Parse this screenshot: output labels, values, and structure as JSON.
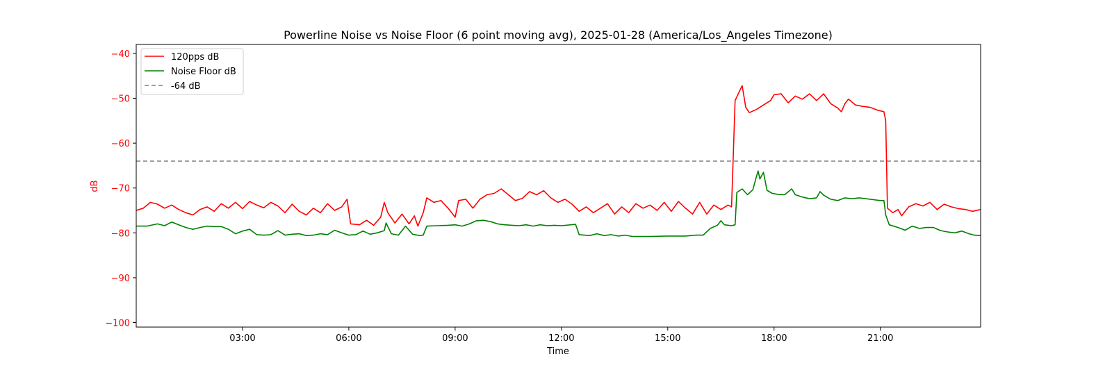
{
  "chart_data": {
    "type": "line",
    "title": "Powerline Noise vs Noise Floor (6 point moving avg), 2025-01-28 (America/Los_Angeles Timezone)",
    "xlabel": "Time",
    "ylabel": "dB",
    "x_unit": "hour of day",
    "xlim": [
      0,
      23.83
    ],
    "ylim": [
      -101,
      -38
    ],
    "x_ticks": [
      {
        "value": 3,
        "label": "03:00"
      },
      {
        "value": 6,
        "label": "06:00"
      },
      {
        "value": 9,
        "label": "09:00"
      },
      {
        "value": 12,
        "label": "12:00"
      },
      {
        "value": 15,
        "label": "15:00"
      },
      {
        "value": 18,
        "label": "18:00"
      },
      {
        "value": 21,
        "label": "21:00"
      }
    ],
    "y_ticks": [
      {
        "value": -40,
        "label": "−40"
      },
      {
        "value": -50,
        "label": "−50"
      },
      {
        "value": -60,
        "label": "−60"
      },
      {
        "value": -70,
        "label": "−70"
      },
      {
        "value": -80,
        "label": "−80"
      },
      {
        "value": -90,
        "label": "−90"
      },
      {
        "value": -100,
        "label": "−100"
      }
    ],
    "grid": false,
    "legend_position": "top-left",
    "ytick_color": "#ff0000",
    "series": [
      {
        "name": "120pps dB",
        "color": "#ff0000",
        "style": "solid",
        "points": [
          [
            0,
            -75
          ],
          [
            0.2,
            -74.5
          ],
          [
            0.4,
            -73.2
          ],
          [
            0.6,
            -73.6
          ],
          [
            0.8,
            -74.5
          ],
          [
            1.0,
            -73.8
          ],
          [
            1.2,
            -74.8
          ],
          [
            1.4,
            -75.5
          ],
          [
            1.6,
            -76
          ],
          [
            1.8,
            -74.8
          ],
          [
            2.0,
            -74.2
          ],
          [
            2.2,
            -75.2
          ],
          [
            2.4,
            -73.5
          ],
          [
            2.6,
            -74.5
          ],
          [
            2.8,
            -73.2
          ],
          [
            3.0,
            -74.6
          ],
          [
            3.2,
            -73.0
          ],
          [
            3.4,
            -73.8
          ],
          [
            3.6,
            -74.4
          ],
          [
            3.8,
            -73.2
          ],
          [
            4.0,
            -74
          ],
          [
            4.2,
            -75.5
          ],
          [
            4.4,
            -73.6
          ],
          [
            4.6,
            -75.2
          ],
          [
            4.8,
            -76
          ],
          [
            5.0,
            -74.5
          ],
          [
            5.2,
            -75.5
          ],
          [
            5.4,
            -73.5
          ],
          [
            5.6,
            -75
          ],
          [
            5.8,
            -74.2
          ],
          [
            5.95,
            -72.5
          ],
          [
            6.05,
            -78
          ],
          [
            6.3,
            -78.2
          ],
          [
            6.5,
            -77.2
          ],
          [
            6.7,
            -78.3
          ],
          [
            6.9,
            -76.5
          ],
          [
            7.0,
            -73.2
          ],
          [
            7.1,
            -75.5
          ],
          [
            7.3,
            -77.8
          ],
          [
            7.5,
            -75.8
          ],
          [
            7.7,
            -78
          ],
          [
            7.85,
            -76.2
          ],
          [
            7.95,
            -78.5
          ],
          [
            8.1,
            -75.5
          ],
          [
            8.2,
            -72.2
          ],
          [
            8.4,
            -73.2
          ],
          [
            8.6,
            -72.8
          ],
          [
            8.8,
            -74.5
          ],
          [
            9.0,
            -76.5
          ],
          [
            9.1,
            -72.8
          ],
          [
            9.3,
            -72.5
          ],
          [
            9.5,
            -74.5
          ],
          [
            9.7,
            -72.5
          ],
          [
            9.9,
            -71.5
          ],
          [
            10.1,
            -71.2
          ],
          [
            10.3,
            -70.2
          ],
          [
            10.5,
            -71.5
          ],
          [
            10.7,
            -72.8
          ],
          [
            10.9,
            -72.3
          ],
          [
            11.1,
            -70.8
          ],
          [
            11.3,
            -71.5
          ],
          [
            11.5,
            -70.6
          ],
          [
            11.7,
            -72.2
          ],
          [
            11.9,
            -73.2
          ],
          [
            12.1,
            -72.5
          ],
          [
            12.3,
            -73.6
          ],
          [
            12.5,
            -75.2
          ],
          [
            12.7,
            -74.2
          ],
          [
            12.9,
            -75.5
          ],
          [
            13.1,
            -74.5
          ],
          [
            13.3,
            -73.5
          ],
          [
            13.5,
            -75.8
          ],
          [
            13.7,
            -74.2
          ],
          [
            13.9,
            -75.5
          ],
          [
            14.1,
            -73.5
          ],
          [
            14.3,
            -74.5
          ],
          [
            14.5,
            -73.8
          ],
          [
            14.7,
            -75
          ],
          [
            14.9,
            -73.2
          ],
          [
            15.1,
            -75.2
          ],
          [
            15.3,
            -73
          ],
          [
            15.5,
            -74.5
          ],
          [
            15.7,
            -75.8
          ],
          [
            15.9,
            -73.2
          ],
          [
            16.1,
            -75.8
          ],
          [
            16.3,
            -73.8
          ],
          [
            16.5,
            -74.8
          ],
          [
            16.7,
            -73.8
          ],
          [
            16.8,
            -74.2
          ],
          [
            16.9,
            -50.5
          ],
          [
            17.05,
            -48
          ],
          [
            17.1,
            -47.2
          ],
          [
            17.2,
            -52
          ],
          [
            17.3,
            -53.2
          ],
          [
            17.5,
            -52.5
          ],
          [
            17.7,
            -51.5
          ],
          [
            17.9,
            -50.5
          ],
          [
            18.0,
            -49.2
          ],
          [
            18.2,
            -49
          ],
          [
            18.4,
            -51
          ],
          [
            18.6,
            -49.5
          ],
          [
            18.8,
            -50.2
          ],
          [
            19.0,
            -49
          ],
          [
            19.2,
            -50.5
          ],
          [
            19.4,
            -49
          ],
          [
            19.6,
            -51.2
          ],
          [
            19.8,
            -52.2
          ],
          [
            19.9,
            -53
          ],
          [
            20.0,
            -51.2
          ],
          [
            20.1,
            -50.2
          ],
          [
            20.3,
            -51.5
          ],
          [
            20.5,
            -51.8
          ],
          [
            20.7,
            -52
          ],
          [
            20.9,
            -52.6
          ],
          [
            21.1,
            -53
          ],
          [
            21.15,
            -55
          ],
          [
            21.2,
            -74.5
          ],
          [
            21.35,
            -75.5
          ],
          [
            21.5,
            -74.8
          ],
          [
            21.6,
            -76.2
          ],
          [
            21.8,
            -74.2
          ],
          [
            22.0,
            -73.5
          ],
          [
            22.2,
            -74
          ],
          [
            22.4,
            -73.2
          ],
          [
            22.6,
            -74.8
          ],
          [
            22.8,
            -73.6
          ],
          [
            23.0,
            -74.2
          ],
          [
            23.2,
            -74.6
          ],
          [
            23.4,
            -74.8
          ],
          [
            23.6,
            -75.2
          ],
          [
            23.83,
            -74.8
          ]
        ]
      },
      {
        "name": "Noise Floor dB",
        "color": "#008000",
        "style": "solid",
        "points": [
          [
            0,
            -78.5
          ],
          [
            0.3,
            -78.5
          ],
          [
            0.6,
            -78
          ],
          [
            0.8,
            -78.4
          ],
          [
            1.0,
            -77.6
          ],
          [
            1.2,
            -78.2
          ],
          [
            1.4,
            -78.8
          ],
          [
            1.6,
            -79.2
          ],
          [
            1.8,
            -78.8
          ],
          [
            2.0,
            -78.5
          ],
          [
            2.2,
            -78.6
          ],
          [
            2.4,
            -78.6
          ],
          [
            2.6,
            -79.2
          ],
          [
            2.8,
            -80.2
          ],
          [
            3.0,
            -79.6
          ],
          [
            3.2,
            -79.2
          ],
          [
            3.4,
            -80.4
          ],
          [
            3.6,
            -80.5
          ],
          [
            3.8,
            -80.4
          ],
          [
            4.0,
            -79.5
          ],
          [
            4.2,
            -80.5
          ],
          [
            4.4,
            -80.3
          ],
          [
            4.6,
            -80.2
          ],
          [
            4.8,
            -80.6
          ],
          [
            5.0,
            -80.5
          ],
          [
            5.2,
            -80.2
          ],
          [
            5.4,
            -80.4
          ],
          [
            5.6,
            -79.4
          ],
          [
            5.8,
            -80
          ],
          [
            6.0,
            -80.5
          ],
          [
            6.2,
            -80.4
          ],
          [
            6.4,
            -79.6
          ],
          [
            6.6,
            -80.3
          ],
          [
            6.8,
            -80
          ],
          [
            7.0,
            -79.5
          ],
          [
            7.05,
            -77.8
          ],
          [
            7.2,
            -80.2
          ],
          [
            7.4,
            -80.5
          ],
          [
            7.6,
            -78.5
          ],
          [
            7.8,
            -80.3
          ],
          [
            8.0,
            -80.6
          ],
          [
            8.1,
            -80.5
          ],
          [
            8.2,
            -78.5
          ],
          [
            8.5,
            -78.4
          ],
          [
            8.8,
            -78.3
          ],
          [
            9.0,
            -78.2
          ],
          [
            9.2,
            -78.5
          ],
          [
            9.4,
            -78
          ],
          [
            9.6,
            -77.3
          ],
          [
            9.8,
            -77.2
          ],
          [
            10.0,
            -77.5
          ],
          [
            10.2,
            -78
          ],
          [
            10.4,
            -78.2
          ],
          [
            10.6,
            -78.3
          ],
          [
            10.8,
            -78.4
          ],
          [
            11.0,
            -78.2
          ],
          [
            11.2,
            -78.5
          ],
          [
            11.4,
            -78.2
          ],
          [
            11.6,
            -78.4
          ],
          [
            11.8,
            -78.3
          ],
          [
            12.0,
            -78.4
          ],
          [
            12.4,
            -78.1
          ],
          [
            12.5,
            -80.4
          ],
          [
            12.8,
            -80.6
          ],
          [
            13.0,
            -80.2
          ],
          [
            13.2,
            -80.6
          ],
          [
            13.4,
            -80.4
          ],
          [
            13.6,
            -80.7
          ],
          [
            13.8,
            -80.5
          ],
          [
            14.0,
            -80.8
          ],
          [
            14.5,
            -80.8
          ],
          [
            15.0,
            -80.7
          ],
          [
            15.5,
            -80.7
          ],
          [
            15.8,
            -80.5
          ],
          [
            16.0,
            -80.5
          ],
          [
            16.2,
            -79
          ],
          [
            16.4,
            -78.3
          ],
          [
            16.5,
            -77.3
          ],
          [
            16.6,
            -78.2
          ],
          [
            16.8,
            -78.4
          ],
          [
            16.9,
            -78.2
          ],
          [
            16.95,
            -71
          ],
          [
            17.1,
            -70.2
          ],
          [
            17.25,
            -71.5
          ],
          [
            17.4,
            -70.4
          ],
          [
            17.5,
            -67.5
          ],
          [
            17.55,
            -66.2
          ],
          [
            17.6,
            -68
          ],
          [
            17.7,
            -66.5
          ],
          [
            17.8,
            -70.5
          ],
          [
            17.95,
            -71.2
          ],
          [
            18.1,
            -71.4
          ],
          [
            18.3,
            -71.5
          ],
          [
            18.5,
            -70.2
          ],
          [
            18.6,
            -71.5
          ],
          [
            18.8,
            -72
          ],
          [
            19.0,
            -72.4
          ],
          [
            19.2,
            -72.2
          ],
          [
            19.3,
            -70.8
          ],
          [
            19.4,
            -71.6
          ],
          [
            19.6,
            -72.5
          ],
          [
            19.8,
            -72.8
          ],
          [
            20.0,
            -72.2
          ],
          [
            20.2,
            -72.4
          ],
          [
            20.4,
            -72.2
          ],
          [
            20.6,
            -72.4
          ],
          [
            20.8,
            -72.6
          ],
          [
            21.0,
            -72.8
          ],
          [
            21.1,
            -72.8
          ],
          [
            21.15,
            -76
          ],
          [
            21.25,
            -78.2
          ],
          [
            21.5,
            -78.8
          ],
          [
            21.7,
            -79.4
          ],
          [
            21.9,
            -78.5
          ],
          [
            22.1,
            -79
          ],
          [
            22.3,
            -78.8
          ],
          [
            22.5,
            -78.8
          ],
          [
            22.7,
            -79.5
          ],
          [
            22.9,
            -79.8
          ],
          [
            23.1,
            -80
          ],
          [
            23.3,
            -79.6
          ],
          [
            23.5,
            -80.2
          ],
          [
            23.65,
            -80.5
          ],
          [
            23.83,
            -80.6
          ]
        ]
      },
      {
        "name": "-64 dB",
        "color": "#808080",
        "style": "dashed",
        "points": [
          [
            0,
            -64
          ],
          [
            23.83,
            -64
          ]
        ]
      }
    ]
  }
}
